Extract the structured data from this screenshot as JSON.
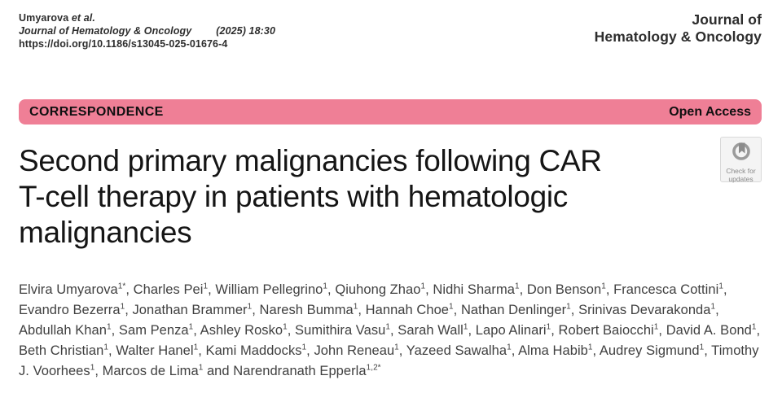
{
  "header": {
    "citation": {
      "authors": "Umyarova",
      "et_al": "et al.",
      "journal": "Journal of Hematology & Oncology",
      "issue": "(2025) 18:30",
      "doi": "https://doi.org/10.1186/s13045-025-01676-4"
    },
    "journal_name": {
      "line1": "Journal of",
      "line2": "Hematology & Oncology"
    }
  },
  "banner": {
    "article_type": "CORRESPONDENCE",
    "access_label": "Open Access",
    "background_color": "#ef7f96"
  },
  "article": {
    "title": "Second primary malignancies following CAR T-cell therapy in patients with hematologic malignancies",
    "title_lines": [
      "Second primary malignancies following CAR",
      "T-cell therapy in patients with hematologic",
      "malignancies"
    ]
  },
  "check_badge": {
    "line1": "Check for",
    "line2": "updates"
  },
  "authors": {
    "conjunction": "and",
    "list": [
      {
        "name": "Elvira Umyarova",
        "sup": "1*"
      },
      {
        "name": "Charles Pei",
        "sup": "1"
      },
      {
        "name": "William Pellegrino",
        "sup": "1"
      },
      {
        "name": "Qiuhong Zhao",
        "sup": "1"
      },
      {
        "name": "Nidhi Sharma",
        "sup": "1"
      },
      {
        "name": "Don Benson",
        "sup": "1"
      },
      {
        "name": "Francesca Cottini",
        "sup": "1"
      },
      {
        "name": "Evandro Bezerra",
        "sup": "1"
      },
      {
        "name": "Jonathan Brammer",
        "sup": "1"
      },
      {
        "name": "Naresh Bumma",
        "sup": "1"
      },
      {
        "name": "Hannah Choe",
        "sup": "1"
      },
      {
        "name": "Nathan Denlinger",
        "sup": "1"
      },
      {
        "name": "Srinivas Devarakonda",
        "sup": "1"
      },
      {
        "name": "Abdullah Khan",
        "sup": "1"
      },
      {
        "name": "Sam Penza",
        "sup": "1"
      },
      {
        "name": "Ashley Rosko",
        "sup": "1"
      },
      {
        "name": "Sumithira Vasu",
        "sup": "1"
      },
      {
        "name": "Sarah Wall",
        "sup": "1"
      },
      {
        "name": "Lapo Alinari",
        "sup": "1"
      },
      {
        "name": "Robert Baiocchi",
        "sup": "1"
      },
      {
        "name": "David A. Bond",
        "sup": "1"
      },
      {
        "name": "Beth Christian",
        "sup": "1"
      },
      {
        "name": "Walter Hanel",
        "sup": "1"
      },
      {
        "name": "Kami Maddocks",
        "sup": "1"
      },
      {
        "name": "John Reneau",
        "sup": "1"
      },
      {
        "name": "Yazeed Sawalha",
        "sup": "1"
      },
      {
        "name": "Alma Habib",
        "sup": "1"
      },
      {
        "name": "Audrey Sigmund",
        "sup": "1"
      },
      {
        "name": "Timothy J. Voorhees",
        "sup": "1"
      },
      {
        "name": "Marcos de Lima",
        "sup": "1"
      },
      {
        "name": "Narendranath Epperla",
        "sup": "1,2*"
      }
    ]
  }
}
